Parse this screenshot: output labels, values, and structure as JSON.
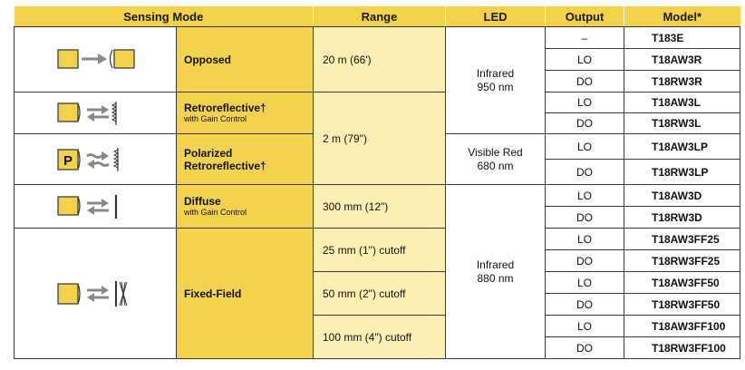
{
  "headers": {
    "sensing_mode": "Sensing Mode",
    "range": "Range",
    "led": "LED",
    "output": "Output",
    "model": "Model*"
  },
  "modes": {
    "opposed": "Opposed",
    "retro": "Retroreflective†",
    "retro_sub": "with Gain Control",
    "polarized_1": "Polarized",
    "polarized_2": "Retroreflective†",
    "diffuse": "Diffuse",
    "diffuse_sub": "with Gain Control",
    "fixed": "Fixed-Field"
  },
  "ranges": {
    "opposed": "20 m (66')",
    "retro_polar": "2 m (79\")",
    "diffuse": "300 mm (12\")",
    "ff25": "25 mm (1\") cutoff",
    "ff50": "50 mm (2\") cutoff",
    "ff100": "100 mm (4\") cutoff"
  },
  "leds": {
    "infrared_950_1": "Infrared",
    "infrared_950_2": "950 nm",
    "visible_red_1": "Visible Red",
    "visible_red_2": "680 nm",
    "infrared_880_1": "Infrared",
    "infrared_880_2": "880 nm"
  },
  "polarized_badge": "P",
  "rows": [
    {
      "output": "–",
      "model": "T183E"
    },
    {
      "output": "LO",
      "model": "T18AW3R"
    },
    {
      "output": "DO",
      "model": "T18RW3R"
    },
    {
      "output": "LO",
      "model": "T18AW3L"
    },
    {
      "output": "DO",
      "model": "T18RW3L"
    },
    {
      "output": "LO",
      "model": "T18AW3LP"
    },
    {
      "output": "DO",
      "model": "T18RW3LP"
    },
    {
      "output": "LO",
      "model": "T18AW3D"
    },
    {
      "output": "DO",
      "model": "T18RW3D"
    },
    {
      "output": "LO",
      "model": "T18AW3FF25"
    },
    {
      "output": "DO",
      "model": "T18RW3FF25"
    },
    {
      "output": "LO",
      "model": "T18AW3FF50"
    },
    {
      "output": "DO",
      "model": "T18RW3FF50"
    },
    {
      "output": "LO",
      "model": "T18AW3FF100"
    },
    {
      "output": "DO",
      "model": "T18RW3FF100"
    }
  ],
  "colors": {
    "header": "#f2d24a",
    "mode_cell": "#f3d24f",
    "range_cell": "#fcefb4",
    "sensor_body": "#f1d24a"
  }
}
